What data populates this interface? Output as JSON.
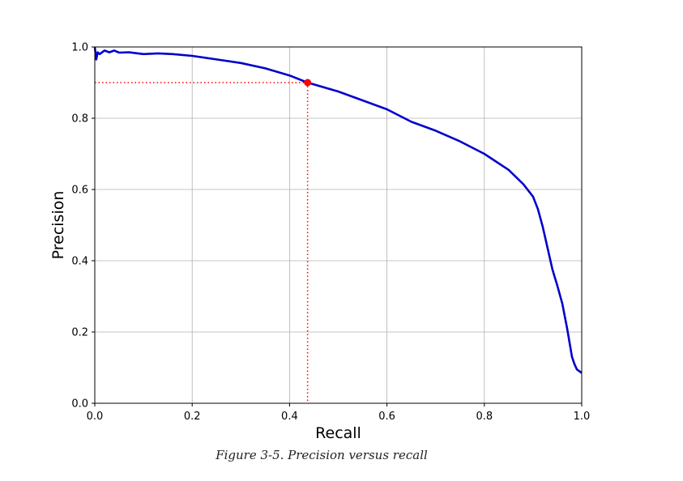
{
  "caption": "Figure 3-5. Precision versus recall",
  "chart_data": {
    "type": "line",
    "title": "",
    "xlabel": "Recall",
    "ylabel": "Precision",
    "xlim": [
      0,
      1
    ],
    "ylim": [
      0,
      1
    ],
    "grid": true,
    "xticks": [
      "0.0",
      "0.2",
      "0.4",
      "0.6",
      "0.8",
      "1.0"
    ],
    "yticks": [
      "0.0",
      "0.2",
      "0.4",
      "0.6",
      "0.8",
      "1.0"
    ],
    "series": [
      {
        "color": "#0000cc",
        "x": [
          0.0,
          0.003,
          0.006,
          0.01,
          0.02,
          0.03,
          0.04,
          0.05,
          0.07,
          0.1,
          0.13,
          0.16,
          0.2,
          0.25,
          0.3,
          0.35,
          0.4,
          0.437,
          0.5,
          0.55,
          0.6,
          0.65,
          0.7,
          0.75,
          0.8,
          0.85,
          0.88,
          0.9,
          0.91,
          0.92,
          0.93,
          0.94,
          0.95,
          0.96,
          0.965,
          0.97,
          0.975,
          0.98,
          0.985,
          0.99,
          1.0
        ],
        "y": [
          1.0,
          0.965,
          0.985,
          0.98,
          0.99,
          0.985,
          0.99,
          0.984,
          0.985,
          0.98,
          0.982,
          0.98,
          0.975,
          0.965,
          0.955,
          0.94,
          0.92,
          0.9,
          0.875,
          0.85,
          0.825,
          0.79,
          0.765,
          0.735,
          0.7,
          0.655,
          0.615,
          0.58,
          0.545,
          0.495,
          0.435,
          0.375,
          0.33,
          0.28,
          0.245,
          0.21,
          0.17,
          0.13,
          0.11,
          0.095,
          0.085
        ]
      }
    ],
    "marker": {
      "x": 0.437,
      "y": 0.9,
      "color": "#ff0000"
    },
    "guides": {
      "x": 0.437,
      "y": 0.9,
      "color": "#ff0000",
      "style": "dotted"
    }
  }
}
